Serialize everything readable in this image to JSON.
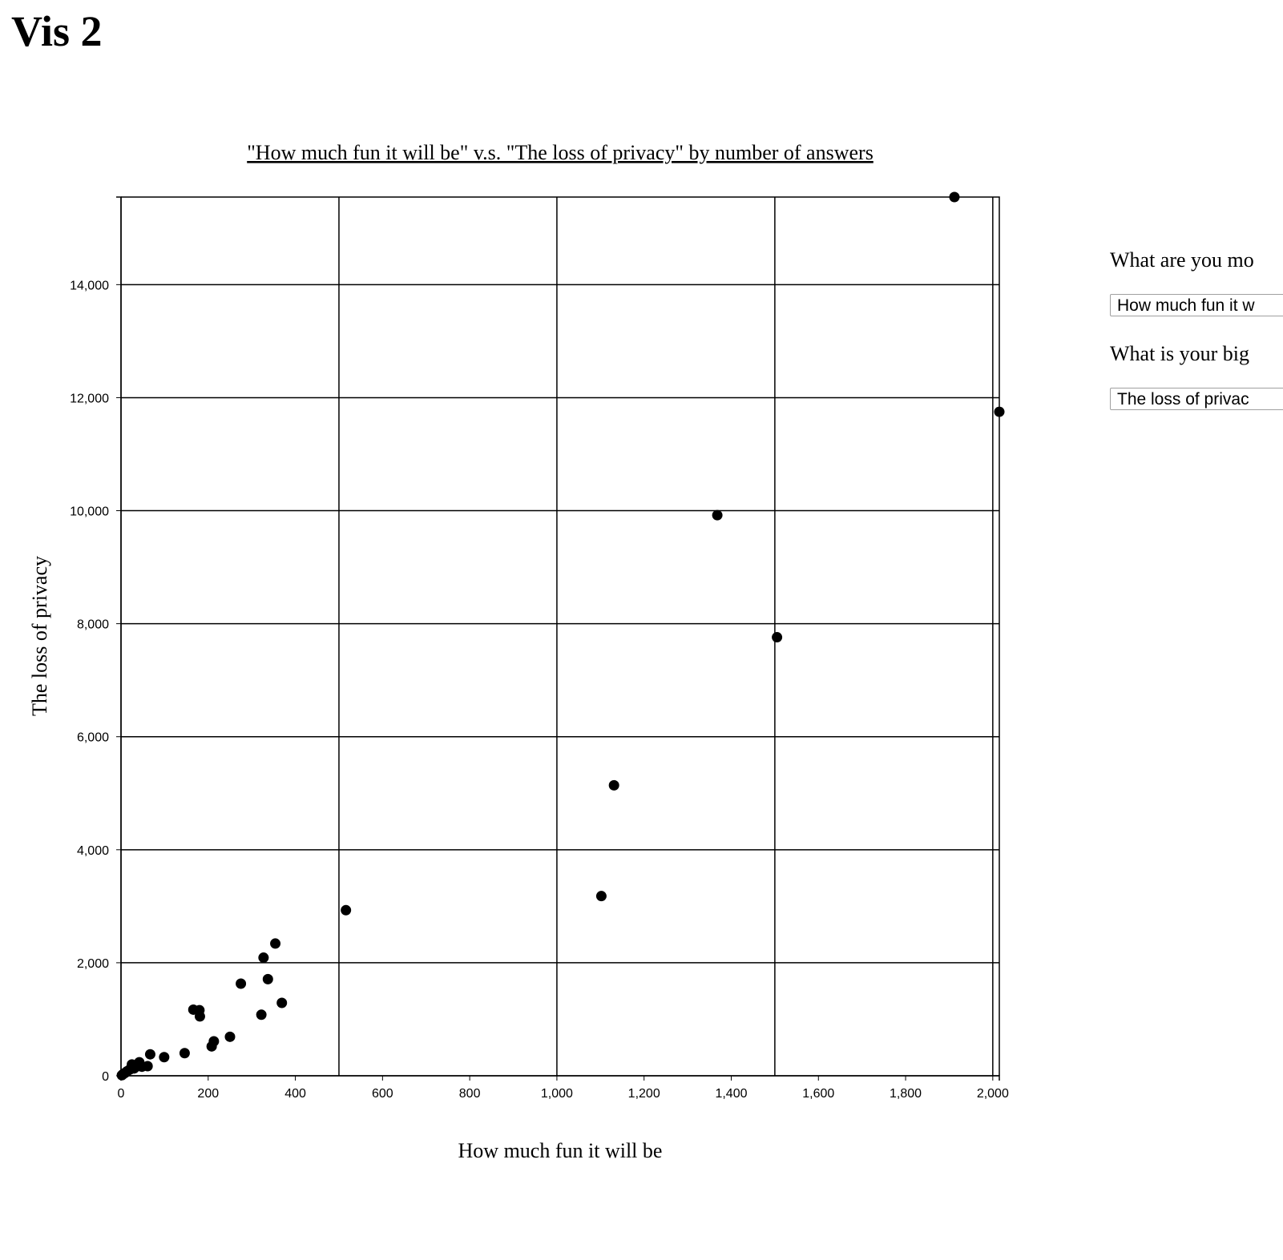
{
  "page": {
    "heading": "Vis 2"
  },
  "controls": {
    "question_1": "What are you mo",
    "select_1_value": "How much fun it w",
    "question_2": "What is your big",
    "select_2_value": "The loss of privac"
  },
  "chart_data": {
    "type": "scatter",
    "title": "\"How much fun it will be\" v.s. \"The loss of privacy\" by number of answers",
    "xlabel": "How much fun it will be",
    "ylabel": "The loss of privacy",
    "xlim": [
      0,
      2015
    ],
    "ylim": [
      0,
      15550
    ],
    "x_ticks": [
      0,
      200,
      400,
      600,
      800,
      1000,
      1200,
      1400,
      1600,
      1800,
      2000
    ],
    "x_tick_labels": [
      "0",
      "200",
      "400",
      "600",
      "800",
      "1,000",
      "1,200",
      "1,400",
      "1,600",
      "1,800",
      "2,000"
    ],
    "y_ticks": [
      0,
      2000,
      4000,
      6000,
      8000,
      10000,
      12000,
      14000
    ],
    "y_tick_labels": [
      "0",
      "2,000",
      "4,000",
      "6,000",
      "8,000",
      "10,000",
      "12,000",
      "14,000"
    ],
    "x_grid": [
      0,
      500,
      1000,
      1500,
      2000
    ],
    "y_grid": [
      0,
      2000,
      4000,
      6000,
      8000,
      10000,
      12000,
      14000
    ],
    "grid": true,
    "marker_color": "#000000",
    "points": [
      {
        "x": 1912,
        "y": 15550
      },
      {
        "x": 2015,
        "y": 11750
      },
      {
        "x": 1368,
        "y": 9920
      },
      {
        "x": 1505,
        "y": 7760
      },
      {
        "x": 1131,
        "y": 5140
      },
      {
        "x": 1102,
        "y": 3180
      },
      {
        "x": 516,
        "y": 2930
      },
      {
        "x": 354,
        "y": 2340
      },
      {
        "x": 327,
        "y": 2090
      },
      {
        "x": 337,
        "y": 1710
      },
      {
        "x": 275,
        "y": 1630
      },
      {
        "x": 369,
        "y": 1290
      },
      {
        "x": 166,
        "y": 1170
      },
      {
        "x": 180,
        "y": 1160
      },
      {
        "x": 181,
        "y": 1050
      },
      {
        "x": 322,
        "y": 1080
      },
      {
        "x": 250,
        "y": 690
      },
      {
        "x": 213,
        "y": 610
      },
      {
        "x": 208,
        "y": 520
      },
      {
        "x": 146,
        "y": 400
      },
      {
        "x": 99,
        "y": 330
      },
      {
        "x": 67,
        "y": 380
      },
      {
        "x": 61,
        "y": 170
      },
      {
        "x": 42,
        "y": 240
      },
      {
        "x": 38,
        "y": 170
      },
      {
        "x": 25,
        "y": 200
      },
      {
        "x": 20,
        "y": 110
      },
      {
        "x": 14,
        "y": 80
      },
      {
        "x": 9,
        "y": 50
      },
      {
        "x": 5,
        "y": 30
      },
      {
        "x": 2,
        "y": 10
      },
      {
        "x": 30,
        "y": 130
      },
      {
        "x": 48,
        "y": 160
      }
    ]
  }
}
